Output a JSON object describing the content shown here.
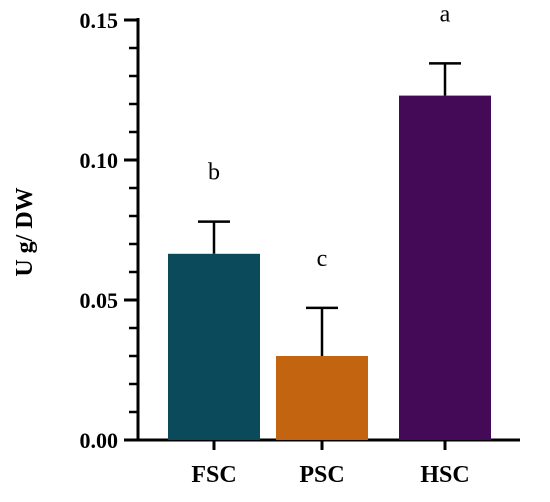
{
  "chart_data": {
    "type": "bar",
    "title": "",
    "xlabel": "",
    "ylabel": "U g/ DW",
    "ylim": [
      0,
      0.15
    ],
    "yticks": [
      "0.00",
      "0.05",
      "0.10",
      "0.15"
    ],
    "ytick_values": [
      0,
      0.05,
      0.1,
      0.15
    ],
    "minor_tick_step": 0.01,
    "grid": false,
    "categories": [
      "FSC",
      "PSC",
      "HSC"
    ],
    "values": [
      0.0665,
      0.03,
      0.123
    ],
    "errors": [
      0.0115,
      0.0172,
      0.0115
    ],
    "significance": [
      "b",
      "c",
      "a"
    ],
    "colors": [
      "#0b4a5a",
      "#c26410",
      "#440a57"
    ]
  }
}
